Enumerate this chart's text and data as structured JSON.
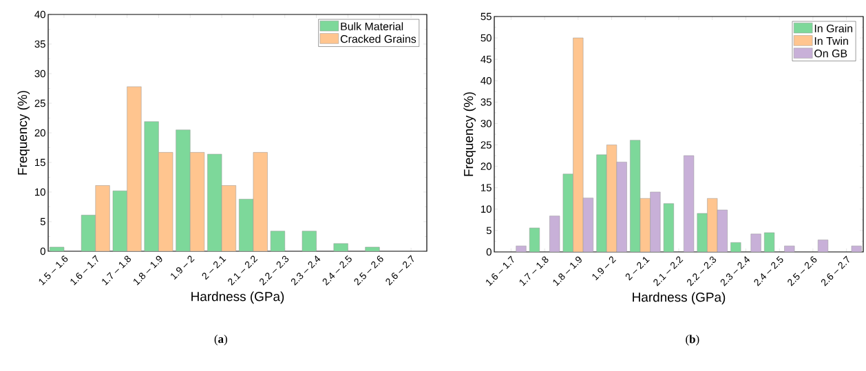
{
  "chart_data": [
    {
      "type": "bar",
      "xlabel": "Hardness (GPa)",
      "ylabel": "Frequency (%)",
      "categories": [
        "1.5 – 1.6",
        "1.6 – 1.7",
        "1.7 – 1.8",
        "1.8 – 1.9",
        "1.9 – 2",
        "2 – 2.1",
        "2.1 – 2.2",
        "2.2 – 2.3",
        "2.3 – 2.4",
        "2.4 – 2.5",
        "2.5 – 2.6",
        "2.6 – 2.7"
      ],
      "series": [
        {
          "name": "Bulk Material",
          "color": "#7dd89a",
          "values": [
            0.7,
            6.1,
            10.2,
            21.9,
            20.5,
            16.4,
            8.8,
            3.4,
            3.4,
            1.3,
            0.7,
            0
          ]
        },
        {
          "name": "Cracked Grains",
          "color": "#ffc58f",
          "values": [
            0,
            11.1,
            27.8,
            16.7,
            16.7,
            11.1,
            16.7,
            0,
            0,
            0,
            0,
            0
          ]
        }
      ],
      "ylim": [
        0,
        40
      ],
      "yticks": [
        0,
        5,
        10,
        15,
        20,
        25,
        30,
        35,
        40
      ],
      "legend": "top right",
      "grid": false,
      "annotations": [
        "(**a**)"
      ]
    },
    {
      "type": "bar",
      "xlabel": "Hardness (GPa)",
      "ylabel": "Frequency (%)",
      "categories": [
        "1.6 – 1.7",
        "1.7 – 1.8",
        "1.8 – 1.9",
        "1.9 – 2",
        "2 – 2.1",
        "2.1 – 2.2",
        "2.2 – 2.3",
        "2.3 – 2.4",
        "2.4 – 2.5",
        "2.5 – 2.6",
        "2.6 – 2.7"
      ],
      "series": [
        {
          "name": "In Grain",
          "color": "#7dd89a",
          "values": [
            0,
            5.6,
            18.2,
            22.7,
            26.1,
            11.3,
            9.0,
            2.2,
            4.5,
            0,
            0
          ]
        },
        {
          "name": "In Twin",
          "color": "#ffc58f",
          "values": [
            0,
            0,
            50.0,
            25.0,
            12.5,
            0,
            12.5,
            0,
            0,
            0,
            0
          ]
        },
        {
          "name": "On GB",
          "color": "#c8b0d8",
          "values": [
            1.4,
            8.4,
            12.6,
            21.0,
            14.0,
            22.5,
            9.8,
            4.2,
            1.4,
            2.8,
            1.4
          ]
        }
      ],
      "ylim": [
        0,
        55
      ],
      "yticks": [
        0,
        5,
        10,
        15,
        20,
        25,
        30,
        35,
        40,
        45,
        50,
        55
      ],
      "legend": "top right",
      "grid": false,
      "annotations": [
        "(**b**)"
      ]
    }
  ]
}
